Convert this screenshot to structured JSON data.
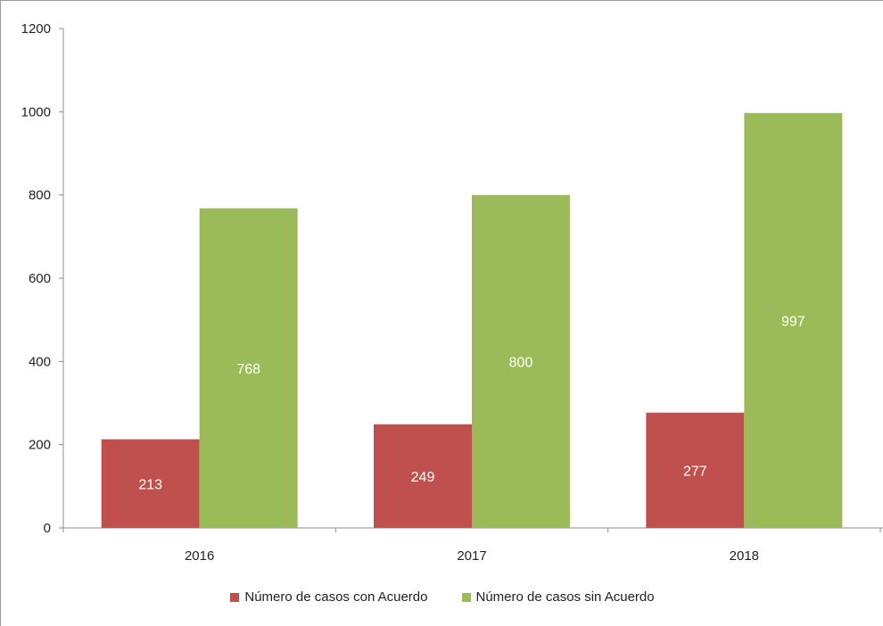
{
  "chart_data": {
    "type": "bar",
    "title": "",
    "xlabel": "",
    "ylabel": "",
    "categories": [
      "2016",
      "2017",
      "2018"
    ],
    "ylim": [
      0,
      1200
    ],
    "yticks": [
      0,
      200,
      400,
      600,
      800,
      1000,
      1200
    ],
    "grid": false,
    "legend_position": "bottom",
    "series": [
      {
        "name": "Número de casos con Acuerdo",
        "color": "#c0504d",
        "values": [
          213,
          249,
          277
        ]
      },
      {
        "name": "Número de casos sin Acuerdo",
        "color": "#9bbb59",
        "values": [
          768,
          800,
          997
        ]
      }
    ]
  }
}
